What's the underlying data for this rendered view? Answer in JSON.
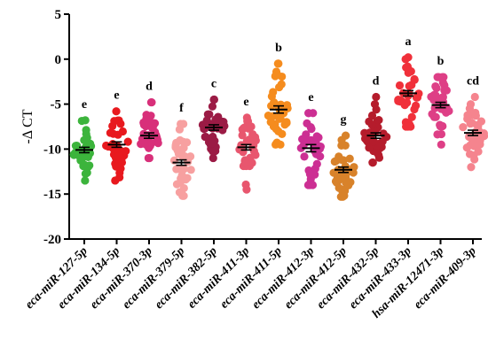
{
  "chart_data": {
    "type": "scatter",
    "ylabel": "-Δ CT",
    "ylim": [
      -20,
      5
    ],
    "yticks": [
      5,
      0,
      -5,
      -10,
      -15,
      -20
    ],
    "categories": [
      "eca-miR-127-5p",
      "eca-miR-134-5p",
      "eca-miR-370-3p",
      "eca-miR-379-5p",
      "eca-miR-382-5p",
      "eca-miR-411-3p",
      "eca-miR-411-5p",
      "eca-miR-412-3p",
      "eca-miR-412-5p",
      "eca-miR-432-5p",
      "eca-miR-433-3p",
      "hsa-miR-12471-3p",
      "eca-miR-409-3p"
    ],
    "series": [
      {
        "color": "#3cb43c",
        "mean": -10.1,
        "sem": 0.3,
        "min": -13.5,
        "max": -6.8,
        "significance": "e"
      },
      {
        "color": "#e8191e",
        "mean": -9.5,
        "sem": 0.3,
        "min": -13.5,
        "max": -5.8,
        "significance": "e"
      },
      {
        "color": "#d8307a",
        "mean": -8.5,
        "sem": 0.3,
        "min": -11.0,
        "max": -4.8,
        "significance": "d"
      },
      {
        "color": "#f7a0a0",
        "mean": -11.5,
        "sem": 0.3,
        "min": -15.2,
        "max": -7.2,
        "significance": "f"
      },
      {
        "color": "#9b1b45",
        "mean": -7.6,
        "sem": 0.3,
        "min": -11.0,
        "max": -4.5,
        "significance": "c"
      },
      {
        "color": "#e8566e",
        "mean": -9.8,
        "sem": 0.3,
        "min": -14.5,
        "max": -6.5,
        "significance": "e"
      },
      {
        "color": "#f58c1e",
        "mean": -5.6,
        "sem": 0.4,
        "min": -9.5,
        "max": -0.5,
        "significance": "b"
      },
      {
        "color": "#cc2f93",
        "mean": -9.9,
        "sem": 0.4,
        "min": -14.0,
        "max": -6.0,
        "significance": "e"
      },
      {
        "color": "#d8822a",
        "mean": -12.3,
        "sem": 0.3,
        "min": -15.3,
        "max": -8.5,
        "significance": "g"
      },
      {
        "color": "#b51c2c",
        "mean": -8.5,
        "sem": 0.3,
        "min": -11.5,
        "max": -4.2,
        "significance": "d"
      },
      {
        "color": "#f0303a",
        "mean": -3.8,
        "sem": 0.3,
        "min": -7.5,
        "max": 0.2,
        "significance": "a"
      },
      {
        "color": "#de3f86",
        "mean": -5.1,
        "sem": 0.3,
        "min": -9.5,
        "max": -2.0,
        "significance": "b"
      },
      {
        "color": "#f5848e",
        "mean": -8.2,
        "sem": 0.3,
        "min": -12.0,
        "max": -4.2,
        "significance": "cd"
      }
    ],
    "grid": false,
    "legend": "none"
  }
}
